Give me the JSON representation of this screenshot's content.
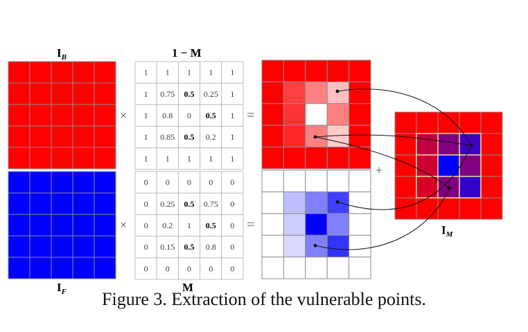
{
  "labels": {
    "ib_main": "I",
    "ib_sub": "B",
    "if_main": "I",
    "if_sub": "F",
    "one_minus_m": "1 − M",
    "m": "M",
    "im_main": "I",
    "im_sub": "M"
  },
  "operators": {
    "times": "×",
    "equals": "=",
    "plus": "+"
  },
  "colors": {
    "red": "#ff0000",
    "blue": "#0000ff",
    "purple": "#800080",
    "grid_line": "#8c8c8c",
    "matrix_line": "#bfbfbf",
    "highlight_border": "#f3e3a8"
  },
  "one_minus_m_matrix": [
    [
      "1",
      "1",
      "1",
      "1",
      "1"
    ],
    [
      "1",
      "0.75",
      "0.5",
      "0.25",
      "1"
    ],
    [
      "1",
      "0.8",
      "0",
      "0.5",
      "1"
    ],
    [
      "1",
      "0.85",
      "0.5",
      "0.2",
      "1"
    ],
    [
      "1",
      "1",
      "1",
      "1",
      "1"
    ]
  ],
  "m_matrix": [
    [
      "0",
      "0",
      "0",
      "0",
      "0"
    ],
    [
      "0",
      "0.25",
      "0.5",
      "0.75",
      "0"
    ],
    [
      "0",
      "0.2",
      "1",
      "0.5",
      "0"
    ],
    [
      "0",
      "0.15",
      "0.5",
      "0.8",
      "0"
    ],
    [
      "0",
      "0",
      "0",
      "0",
      "0"
    ]
  ],
  "bold_cells": [
    "1,2",
    "2,3",
    "3,2"
  ],
  "masked_background_weights": [
    [
      1,
      1,
      1,
      1,
      1
    ],
    [
      1,
      0.75,
      0.5,
      0.25,
      1
    ],
    [
      1,
      0.8,
      0,
      0.5,
      1
    ],
    [
      1,
      0.85,
      0.5,
      0.2,
      1
    ],
    [
      1,
      1,
      1,
      1,
      1
    ]
  ],
  "masked_foreground_weights": [
    [
      0,
      0,
      0,
      0,
      0
    ],
    [
      0,
      0.25,
      0.5,
      0.75,
      0
    ],
    [
      0,
      0.2,
      1,
      0.5,
      0
    ],
    [
      0,
      0.15,
      0.5,
      0.8,
      0
    ],
    [
      0,
      0,
      0,
      0,
      0
    ]
  ],
  "merged_cell_colors": [
    [
      "#ff0000",
      "#ff0000",
      "#ff0000",
      "#ff0000",
      "#ff0000"
    ],
    [
      "#ff0000",
      "#c00040",
      "#800080",
      "#4000c0",
      "#ff0000"
    ],
    [
      "#ff0000",
      "#cc0033",
      "#0000ff",
      "#800080",
      "#ff0000"
    ],
    [
      "#ff0000",
      "#d90026",
      "#800080",
      "#3300cc",
      "#ff0000"
    ],
    [
      "#ff0000",
      "#ff0000",
      "#ff0000",
      "#ff0000",
      "#ff0000"
    ]
  ],
  "caption": "Figure 3. Extraction of the vulnerable points."
}
